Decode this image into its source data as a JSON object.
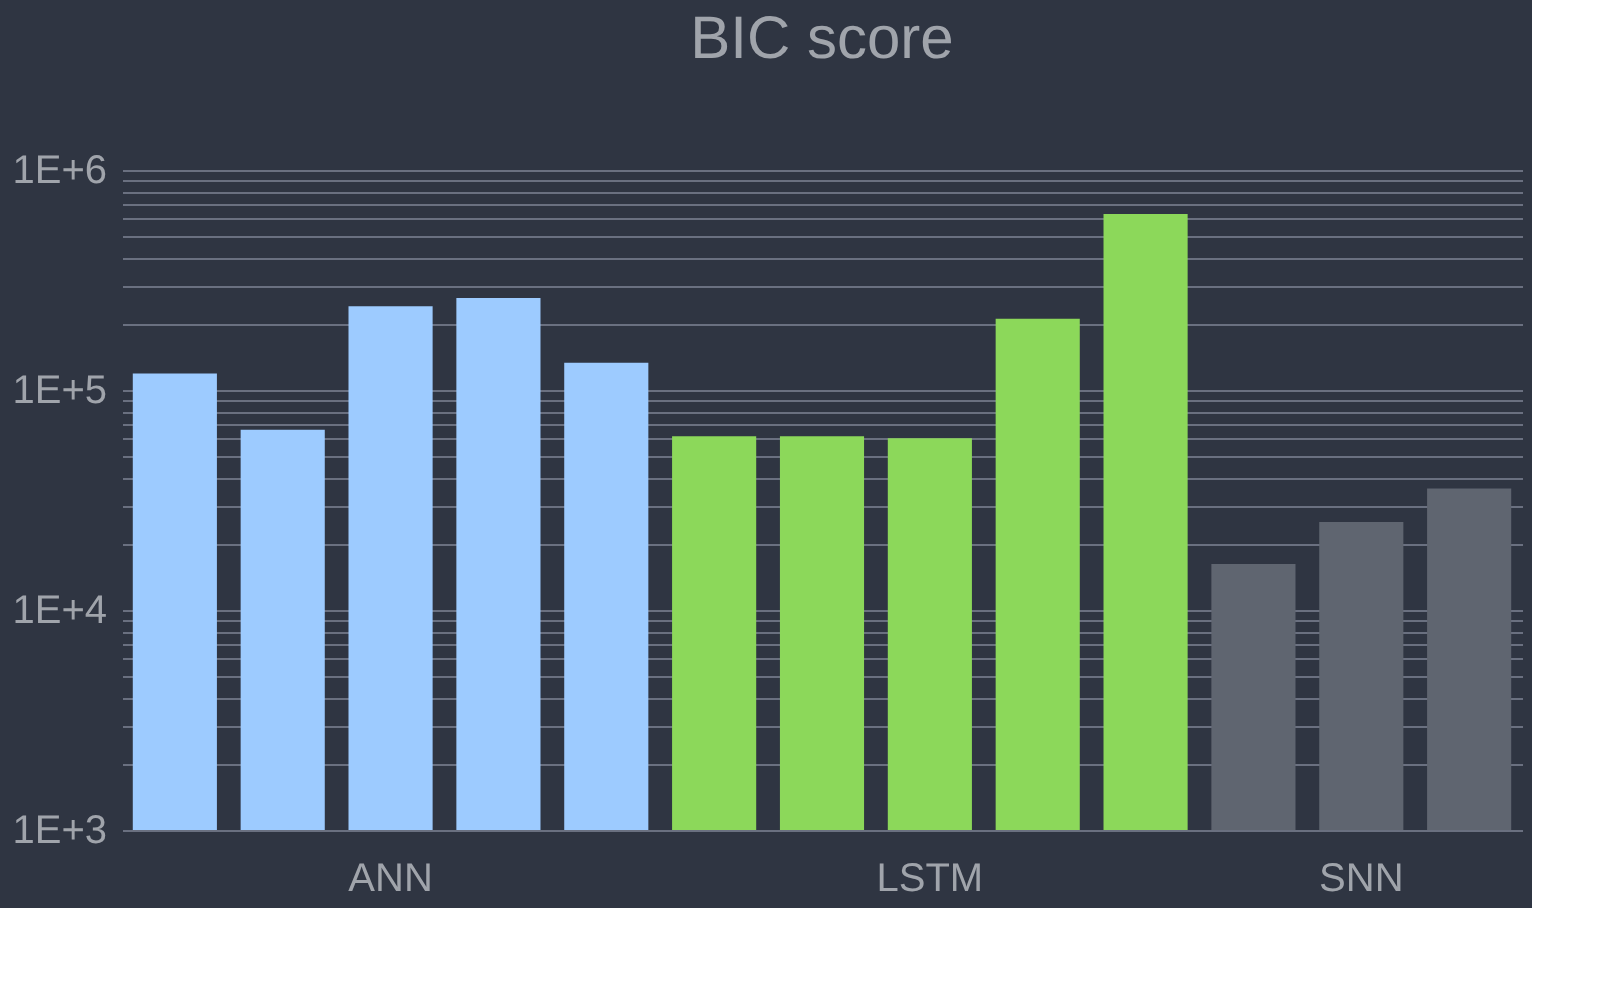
{
  "chart_data": {
    "type": "bar",
    "title": "BIC score",
    "categories": [
      null,
      null,
      "ANN",
      null,
      null,
      null,
      null,
      "LSTM",
      null,
      null,
      null,
      "SNN",
      null
    ],
    "series": [
      {
        "values": [
          119000,
          65900,
          240000,
          262000,
          133000,
          61700,
          61700,
          60400,
          211000,
          631000,
          16200,
          25100,
          35700
        ],
        "colors": [
          "#9dcbff",
          "#9dcbff",
          "#9dcbff",
          "#9dcbff",
          "#9dcbff",
          "#8cd85a",
          "#8cd85a",
          "#8cd85a",
          "#8cd85a",
          "#8cd85a",
          "#5f6570",
          "#5f6570",
          "#5f6570"
        ]
      }
    ],
    "log": true,
    "ylim": [
      1000,
      1000000
    ],
    "yticks": [
      {
        "value": 1000,
        "label": "1E+3"
      },
      {
        "value": 2000,
        "label": null
      },
      {
        "value": 3000,
        "label": null
      },
      {
        "value": 4000,
        "label": null
      },
      {
        "value": 5000,
        "label": null
      },
      {
        "value": 6000,
        "label": null
      },
      {
        "value": 7000,
        "label": null
      },
      {
        "value": 8000,
        "label": null
      },
      {
        "value": 9000,
        "label": null
      },
      {
        "value": 10000,
        "label": "1E+4"
      },
      {
        "value": 20000,
        "label": null
      },
      {
        "value": 30000,
        "label": null
      },
      {
        "value": 40000,
        "label": null
      },
      {
        "value": 50000,
        "label": null
      },
      {
        "value": 60000,
        "label": null
      },
      {
        "value": 70000,
        "label": null
      },
      {
        "value": 80000,
        "label": null
      },
      {
        "value": 90000,
        "label": null
      },
      {
        "value": 100000,
        "label": "1E+5"
      },
      {
        "value": 200000,
        "label": null
      },
      {
        "value": 300000,
        "label": null
      },
      {
        "value": 400000,
        "label": null
      },
      {
        "value": 500000,
        "label": null
      },
      {
        "value": 600000,
        "label": null
      },
      {
        "value": 700000,
        "label": null
      },
      {
        "value": 800000,
        "label": null
      },
      {
        "value": 900000,
        "label": null
      },
      {
        "value": 1000000,
        "label": "1E+6"
      }
    ],
    "grid": true,
    "legend": false
  }
}
